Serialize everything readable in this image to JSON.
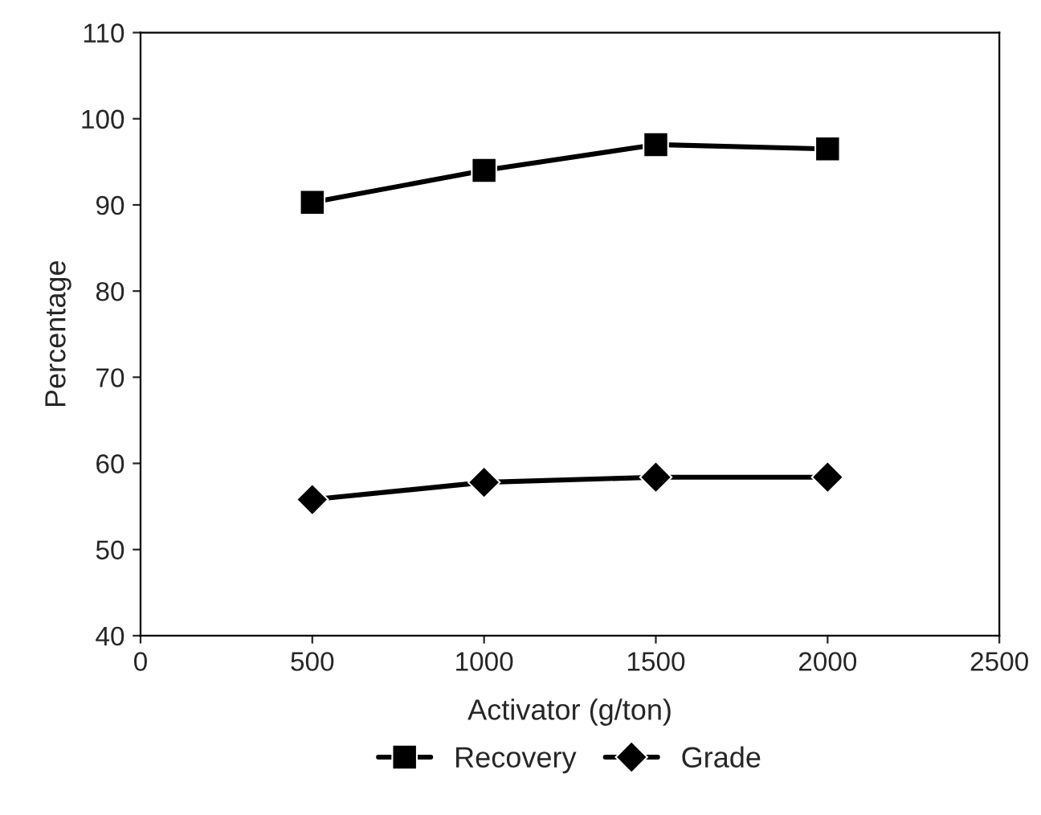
{
  "chart_data": {
    "type": "line",
    "xlabel": "Activator (g/ton)",
    "ylabel": "Percentage",
    "x": [
      500,
      1000,
      1500,
      2000
    ],
    "series": [
      {
        "name": "Recovery",
        "color": "#000000",
        "marker": "square",
        "values": [
          90.3,
          94,
          97,
          96.5
        ]
      },
      {
        "name": "Grade",
        "color": "#000000",
        "marker": "diamond",
        "values": [
          55.8,
          57.8,
          58.4,
          58.4
        ]
      }
    ],
    "xlim": [
      0,
      2500
    ],
    "xticks": [
      0,
      500,
      1000,
      1500,
      2000,
      2500
    ],
    "ylim": [
      40,
      110
    ],
    "yticks": [
      40,
      50,
      60,
      70,
      80,
      90,
      100,
      110
    ],
    "grid": false,
    "legend": "bottom",
    "line_style": "solid"
  }
}
